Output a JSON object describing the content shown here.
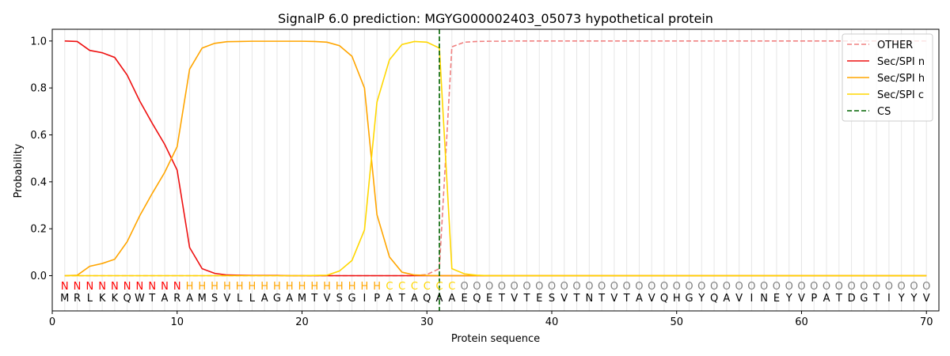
{
  "chart_data": {
    "type": "line",
    "title": "SignalP 6.0 prediction: MGYG000002403_05073 hypothetical protein",
    "xlabel": "Protein sequence",
    "ylabel": "Probability",
    "xlim": [
      0,
      71
    ],
    "ylim": [
      -0.15,
      1.05
    ],
    "xticks": [
      0,
      10,
      20,
      30,
      40,
      50,
      60,
      70
    ],
    "yticks": [
      0.0,
      0.2,
      0.4,
      0.6,
      0.8,
      1.0
    ],
    "xtick_labels": [
      "0",
      "10",
      "20",
      "30",
      "40",
      "50",
      "60",
      "70"
    ],
    "ytick_labels": [
      "0.0",
      "0.2",
      "0.4",
      "0.6",
      "0.8",
      "1.0"
    ],
    "grid": "vertical lines at each residue",
    "legend_position": "top-right",
    "sequence": "MRLKKQWTARAMSVLLAGAMTVSGIPATAQAAEQETVTESVTNTVTAVQHGYQAVINEYVPATDGTIYYV",
    "labels": "NNNNNNNNNNHHHHHHHHHHHHHHHHCCCCCCOOOOOOOOOOOOOOOOOOOOOOOOOOOOOOOOOOOOOOO",
    "label_colors": {
      "N": "#ff0000",
      "H": "#ffa500",
      "C": "#ffd700",
      "O": "#808080"
    },
    "x": [
      1,
      2,
      3,
      4,
      5,
      6,
      7,
      8,
      9,
      10,
      11,
      12,
      13,
      14,
      15,
      16,
      17,
      18,
      19,
      20,
      21,
      22,
      23,
      24,
      25,
      26,
      27,
      28,
      29,
      30,
      31,
      32,
      33,
      34,
      35,
      36,
      37,
      38,
      39,
      40,
      41,
      42,
      43,
      44,
      45,
      46,
      47,
      48,
      49,
      50,
      51,
      52,
      53,
      54,
      55,
      56,
      57,
      58,
      59,
      60,
      61,
      62,
      63,
      64,
      65,
      66,
      67,
      68,
      69,
      70
    ],
    "series": [
      {
        "name": "OTHER",
        "color": "#f08080",
        "dash": true,
        "values": [
          0.0,
          0.0,
          0.0,
          0.0,
          0.0,
          0.0,
          0.0,
          0.0,
          0.0,
          0.0,
          0.0,
          0.0,
          0.0,
          0.0,
          0.0,
          0.0,
          0.0,
          0.0,
          0.0,
          0.0,
          0.0,
          0.0,
          0.0,
          0.0,
          0.0,
          0.0,
          0.0,
          0.0,
          0.0,
          0.005,
          0.03,
          0.975,
          0.995,
          0.998,
          0.999,
          0.999,
          1.0,
          1.0,
          1.0,
          1.0,
          1.0,
          1.0,
          1.0,
          1.0,
          1.0,
          1.0,
          1.0,
          1.0,
          1.0,
          1.0,
          1.0,
          1.0,
          1.0,
          1.0,
          1.0,
          1.0,
          1.0,
          1.0,
          1.0,
          1.0,
          1.0,
          1.0,
          1.0,
          1.0,
          1.0,
          1.0,
          1.0,
          1.0,
          1.0,
          1.0
        ]
      },
      {
        "name": "Sec/SPI n",
        "color": "#ee1111",
        "dash": false,
        "values": [
          1.0,
          0.998,
          0.96,
          0.95,
          0.93,
          0.855,
          0.745,
          0.65,
          0.56,
          0.45,
          0.12,
          0.03,
          0.01,
          0.003,
          0.002,
          0.001,
          0.001,
          0.001,
          0.0,
          0.0,
          0.0,
          0.0,
          0.0,
          0.0,
          0.0,
          0.0,
          0.0,
          0.0,
          0.0,
          0.0,
          0.0,
          0.0,
          0.0,
          0.0,
          0.0,
          0.0,
          0.0,
          0.0,
          0.0,
          0.0,
          0.0,
          0.0,
          0.0,
          0.0,
          0.0,
          0.0,
          0.0,
          0.0,
          0.0,
          0.0,
          0.0,
          0.0,
          0.0,
          0.0,
          0.0,
          0.0,
          0.0,
          0.0,
          0.0,
          0.0,
          0.0,
          0.0,
          0.0,
          0.0,
          0.0,
          0.0,
          0.0,
          0.0,
          0.0,
          0.0
        ]
      },
      {
        "name": "Sec/SPI h",
        "color": "#ffa500",
        "dash": false,
        "values": [
          0.0,
          0.002,
          0.04,
          0.052,
          0.07,
          0.145,
          0.255,
          0.35,
          0.44,
          0.55,
          0.88,
          0.97,
          0.99,
          0.997,
          0.998,
          0.999,
          0.999,
          0.999,
          0.999,
          0.999,
          0.998,
          0.995,
          0.98,
          0.935,
          0.8,
          0.26,
          0.08,
          0.015,
          0.003,
          0.001,
          0.0,
          0.0,
          0.0,
          0.0,
          0.0,
          0.0,
          0.0,
          0.0,
          0.0,
          0.0,
          0.0,
          0.0,
          0.0,
          0.0,
          0.0,
          0.0,
          0.0,
          0.0,
          0.0,
          0.0,
          0.0,
          0.0,
          0.0,
          0.0,
          0.0,
          0.0,
          0.0,
          0.0,
          0.0,
          0.0,
          0.0,
          0.0,
          0.0,
          0.0,
          0.0,
          0.0,
          0.0,
          0.0,
          0.0,
          0.0
        ]
      },
      {
        "name": "Sec/SPI c",
        "color": "#ffd700",
        "dash": false,
        "values": [
          0.0,
          0.0,
          0.0,
          0.0,
          0.0,
          0.0,
          0.0,
          0.0,
          0.0,
          0.0,
          0.0,
          0.0,
          0.0,
          0.0,
          0.0,
          0.0,
          0.0,
          0.0,
          0.0,
          0.0,
          0.001,
          0.002,
          0.02,
          0.065,
          0.195,
          0.74,
          0.92,
          0.985,
          0.998,
          0.995,
          0.97,
          0.03,
          0.008,
          0.002,
          0.0,
          0.0,
          0.0,
          0.0,
          0.0,
          0.0,
          0.0,
          0.0,
          0.0,
          0.0,
          0.0,
          0.0,
          0.0,
          0.0,
          0.0,
          0.0,
          0.0,
          0.0,
          0.0,
          0.0,
          0.0,
          0.0,
          0.0,
          0.0,
          0.0,
          0.0,
          0.0,
          0.0,
          0.0,
          0.0,
          0.0,
          0.0,
          0.0,
          0.0,
          0.0,
          0.0
        ]
      }
    ],
    "cs": {
      "name": "CS",
      "color": "#006400",
      "x": 31
    }
  }
}
